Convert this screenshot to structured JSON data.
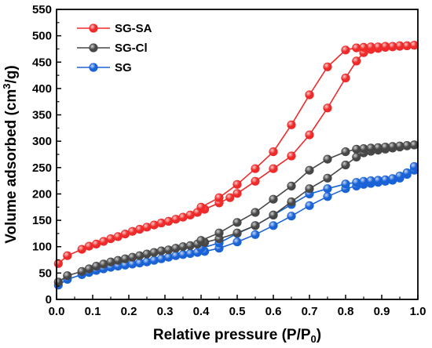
{
  "chart_data": {
    "type": "line",
    "title": "",
    "xlabel": "Relative pressure (P/P0)",
    "ylabel": "Volume adsorbed (cm3/g)",
    "xlabel_parts": {
      "main": "Relative pressure (P/P",
      "sub": "0",
      "end": ")"
    },
    "ylabel_parts": {
      "main": "Volume adsorbed (cm",
      "sup": "3",
      "end": "/g)"
    },
    "xlim": [
      0.0,
      1.0
    ],
    "ylim": [
      0,
      550
    ],
    "x_ticks": [
      "0.0",
      "0.1",
      "0.2",
      "0.3",
      "0.4",
      "0.5",
      "0.6",
      "0.7",
      "0.8",
      "0.9",
      "1.0"
    ],
    "y_ticks": [
      "0",
      "50",
      "100",
      "150",
      "200",
      "250",
      "300",
      "350",
      "400",
      "450",
      "500",
      "550"
    ],
    "grid": false,
    "legend_position": "top-left",
    "series": [
      {
        "name": "SG-SA",
        "color": "#ee2a2a",
        "adsorption": {
          "x": [
            0.005,
            0.03,
            0.07,
            0.09,
            0.11,
            0.13,
            0.15,
            0.17,
            0.19,
            0.21,
            0.23,
            0.25,
            0.27,
            0.29,
            0.31,
            0.33,
            0.35,
            0.37,
            0.39,
            0.41,
            0.45,
            0.48,
            0.5,
            0.55,
            0.6,
            0.65,
            0.7,
            0.75,
            0.8,
            0.83,
            0.85,
            0.87,
            0.89,
            0.91,
            0.93,
            0.95,
            0.97,
            0.99
          ],
          "y": [
            68,
            83,
            95,
            101,
            105,
            110,
            115,
            119,
            124,
            129,
            133,
            137,
            141,
            145,
            148,
            152,
            156,
            160,
            165,
            171,
            183,
            193,
            201,
            224,
            248,
            272,
            312,
            363,
            420,
            452,
            468,
            474,
            476,
            478,
            479,
            480,
            481,
            482
          ]
        },
        "desorption": {
          "x": [
            0.99,
            0.97,
            0.95,
            0.93,
            0.91,
            0.89,
            0.87,
            0.85,
            0.83,
            0.8,
            0.75,
            0.7,
            0.65,
            0.6,
            0.55,
            0.5,
            0.45,
            0.4
          ],
          "y": [
            482,
            481,
            481,
            480,
            480,
            479,
            479,
            478,
            477,
            473,
            441,
            388,
            331,
            280,
            248,
            218,
            193,
            175
          ]
        }
      },
      {
        "name": "SG-Cl",
        "color": "#474747",
        "adsorption": {
          "x": [
            0.005,
            0.03,
            0.07,
            0.09,
            0.11,
            0.13,
            0.15,
            0.17,
            0.19,
            0.21,
            0.23,
            0.25,
            0.27,
            0.29,
            0.31,
            0.33,
            0.35,
            0.37,
            0.39,
            0.41,
            0.45,
            0.5,
            0.55,
            0.6,
            0.65,
            0.7,
            0.75,
            0.8,
            0.83,
            0.85,
            0.87,
            0.89,
            0.91,
            0.93,
            0.95,
            0.97,
            0.99
          ],
          "y": [
            33,
            45,
            53,
            58,
            63,
            67,
            71,
            74,
            77,
            80,
            83,
            86,
            89,
            92,
            94,
            97,
            100,
            102,
            105,
            108,
            115,
            126,
            140,
            160,
            185,
            210,
            230,
            255,
            270,
            278,
            281,
            283,
            285,
            287,
            289,
            291,
            293
          ]
        },
        "desorption": {
          "x": [
            0.99,
            0.97,
            0.95,
            0.93,
            0.91,
            0.89,
            0.87,
            0.85,
            0.83,
            0.8,
            0.75,
            0.7,
            0.65,
            0.6,
            0.55,
            0.5,
            0.45,
            0.4
          ],
          "y": [
            293,
            292,
            291,
            290,
            289,
            288,
            287,
            286,
            285,
            280,
            266,
            245,
            215,
            190,
            165,
            146,
            126,
            112
          ]
        }
      },
      {
        "name": "SG",
        "color": "#1a63d6",
        "adsorption": {
          "x": [
            0.005,
            0.03,
            0.07,
            0.09,
            0.11,
            0.13,
            0.15,
            0.17,
            0.19,
            0.21,
            0.23,
            0.25,
            0.27,
            0.29,
            0.31,
            0.33,
            0.35,
            0.37,
            0.39,
            0.41,
            0.45,
            0.5,
            0.55,
            0.6,
            0.65,
            0.7,
            0.75,
            0.8,
            0.83,
            0.85,
            0.87,
            0.89,
            0.91,
            0.93,
            0.95,
            0.97,
            0.99
          ],
          "y": [
            27,
            38,
            47,
            51,
            55,
            58,
            61,
            63,
            65,
            67,
            69,
            71,
            74,
            77,
            80,
            83,
            85,
            87,
            89,
            91,
            97,
            109,
            123,
            140,
            158,
            178,
            195,
            210,
            215,
            218,
            220,
            222,
            224,
            226,
            230,
            237,
            245
          ]
        },
        "desorption": {
          "x": [
            0.99,
            0.97,
            0.95,
            0.93,
            0.91,
            0.89,
            0.87,
            0.85,
            0.83,
            0.8,
            0.75,
            0.7,
            0.65,
            0.6,
            0.55,
            0.5,
            0.45,
            0.4
          ],
          "y": [
            252,
            240,
            234,
            229,
            227,
            226,
            225,
            224,
            222,
            219,
            210,
            200,
            180,
            160,
            140,
            125,
            107,
            97
          ]
        }
      }
    ]
  }
}
